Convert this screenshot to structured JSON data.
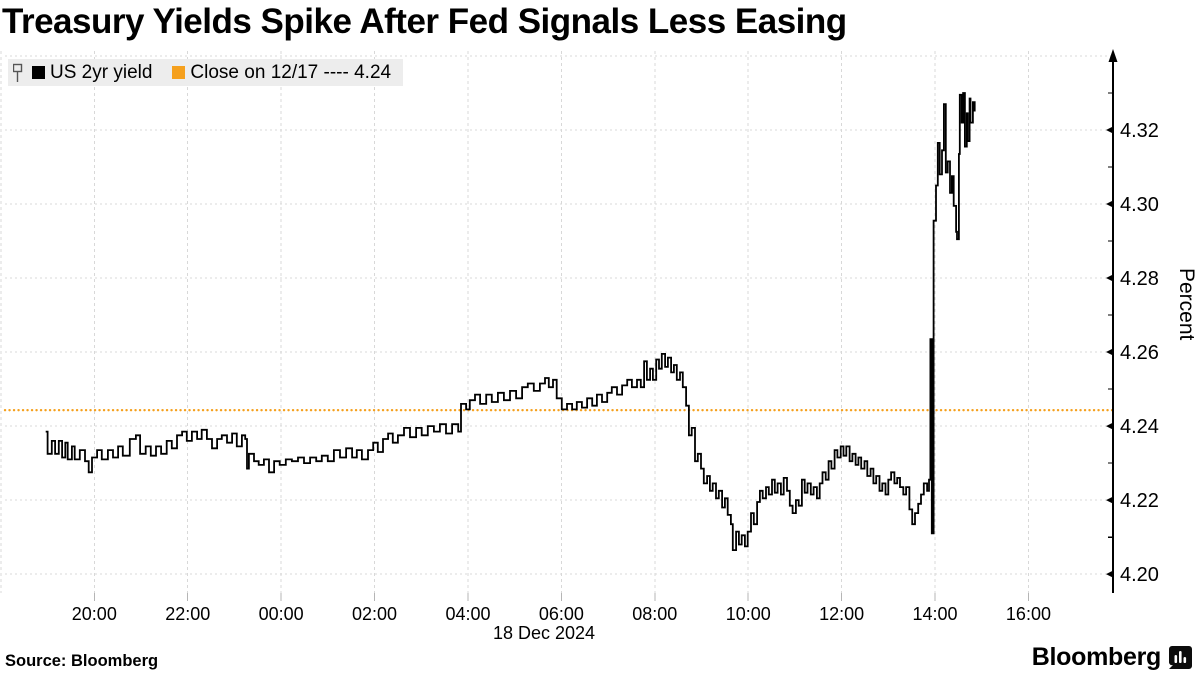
{
  "header": {
    "title": "Treasury Yields Spike After Fed Signals Less Easing"
  },
  "legend": {
    "flag_icon": "flag-marker",
    "series1": {
      "label": "US 2yr yield",
      "color": "#000000"
    },
    "series2": {
      "label": "Close on 12/17 ---- 4.24",
      "color": "#f5a01d"
    }
  },
  "footer": {
    "source": "Source: Bloomberg",
    "brand": "Bloomberg",
    "brand_icon": "bloomberg-terminal-icon"
  },
  "colors": {
    "line": "#000000",
    "close_line": "#f5a01d",
    "grid": "#d8d8d8",
    "legend_bg": "#ededed",
    "tick_stub": "#b5b5b5"
  },
  "chart_data": {
    "type": "line",
    "title": "Treasury Yields Spike After Fed Signals Less Easing",
    "xlabel": "18 Dec 2024",
    "ylabel": "Percent",
    "x_unit": "hours since 18:00 (17 Dec), labels are local clock time",
    "xlim": [
      0.088,
      23.81
    ],
    "ylim": [
      4.1949,
      4.3408
    ],
    "grid": true,
    "legend_position": "top-left",
    "x_ticks": [
      {
        "t": 2,
        "label": "20:00"
      },
      {
        "t": 4,
        "label": "22:00"
      },
      {
        "t": 6,
        "label": "00:00"
      },
      {
        "t": 8,
        "label": "02:00"
      },
      {
        "t": 10,
        "label": "04:00"
      },
      {
        "t": 12,
        "label": "06:00"
      },
      {
        "t": 14,
        "label": "08:00"
      },
      {
        "t": 16,
        "label": "10:00"
      },
      {
        "t": 18,
        "label": "12:00"
      },
      {
        "t": 20,
        "label": "14:00"
      },
      {
        "t": 22,
        "label": "16:00"
      }
    ],
    "x_gridlines": [
      0,
      2,
      4,
      6,
      8,
      10,
      12,
      14,
      16,
      18,
      20,
      22
    ],
    "y_ticks": [
      4.2,
      4.22,
      4.24,
      4.26,
      4.28,
      4.3,
      4.32
    ],
    "y_minor_ticks": [
      4.21,
      4.23,
      4.25,
      4.27,
      4.29,
      4.31,
      4.33
    ],
    "h_gridlines": [
      4.2,
      4.22,
      4.24,
      4.26,
      4.28,
      4.3,
      4.32,
      4.34
    ],
    "close_line": {
      "label": "Close on 12/17",
      "value": 4.2443
    },
    "series": [
      {
        "name": "US 2yr yield",
        "step": true,
        "points": [
          [
            0.96,
            4.2385
          ],
          [
            1.0,
            4.2325
          ],
          [
            1.09,
            4.236
          ],
          [
            1.16,
            4.2325
          ],
          [
            1.24,
            4.236
          ],
          [
            1.31,
            4.2315
          ],
          [
            1.38,
            4.2355
          ],
          [
            1.43,
            4.231
          ],
          [
            1.52,
            4.2345
          ],
          [
            1.58,
            4.231
          ],
          [
            1.69,
            4.2335
          ],
          [
            1.8,
            4.2305
          ],
          [
            1.88,
            4.2275
          ],
          [
            1.95,
            4.2315
          ],
          [
            2.06,
            4.2335
          ],
          [
            2.16,
            4.231
          ],
          [
            2.29,
            4.2335
          ],
          [
            2.4,
            4.2315
          ],
          [
            2.51,
            4.2345
          ],
          [
            2.61,
            4.232
          ],
          [
            2.76,
            4.2365
          ],
          [
            2.89,
            4.2375
          ],
          [
            2.98,
            4.2325
          ],
          [
            3.1,
            4.2345
          ],
          [
            3.21,
            4.232
          ],
          [
            3.32,
            4.2345
          ],
          [
            3.43,
            4.2325
          ],
          [
            3.55,
            4.236
          ],
          [
            3.66,
            4.234
          ],
          [
            3.77,
            4.2375
          ],
          [
            3.88,
            4.2385
          ],
          [
            3.98,
            4.236
          ],
          [
            4.09,
            4.2385
          ],
          [
            4.2,
            4.2365
          ],
          [
            4.3,
            4.239
          ],
          [
            4.41,
            4.2365
          ],
          [
            4.52,
            4.234
          ],
          [
            4.63,
            4.2365
          ],
          [
            4.73,
            4.2375
          ],
          [
            4.84,
            4.2355
          ],
          [
            4.95,
            4.238
          ],
          [
            5.05,
            4.2345
          ],
          [
            5.16,
            4.2375
          ],
          [
            5.23,
            4.2365
          ],
          [
            5.27,
            4.2285
          ],
          [
            5.31,
            4.2325
          ],
          [
            5.42,
            4.2305
          ],
          [
            5.52,
            4.2295
          ],
          [
            5.63,
            4.231
          ],
          [
            5.74,
            4.2275
          ],
          [
            5.85,
            4.2305
          ],
          [
            5.97,
            4.2295
          ],
          [
            6.1,
            4.231
          ],
          [
            6.23,
            4.2305
          ],
          [
            6.36,
            4.2315
          ],
          [
            6.49,
            4.23
          ],
          [
            6.62,
            4.2315
          ],
          [
            6.75,
            4.2305
          ],
          [
            6.87,
            4.232
          ],
          [
            7.0,
            4.2305
          ],
          [
            7.13,
            4.2335
          ],
          [
            7.26,
            4.2315
          ],
          [
            7.39,
            4.234
          ],
          [
            7.52,
            4.2315
          ],
          [
            7.62,
            4.2335
          ],
          [
            7.73,
            4.231
          ],
          [
            7.86,
            4.2335
          ],
          [
            7.97,
            4.2355
          ],
          [
            8.07,
            4.233
          ],
          [
            8.18,
            4.2365
          ],
          [
            8.29,
            4.238
          ],
          [
            8.39,
            4.2355
          ],
          [
            8.5,
            4.2375
          ],
          [
            8.63,
            4.2395
          ],
          [
            8.76,
            4.237
          ],
          [
            8.89,
            4.2395
          ],
          [
            9.01,
            4.2375
          ],
          [
            9.14,
            4.24
          ],
          [
            9.27,
            4.2385
          ],
          [
            9.4,
            4.2405
          ],
          [
            9.53,
            4.238
          ],
          [
            9.66,
            4.2405
          ],
          [
            9.79,
            4.2385
          ],
          [
            9.85,
            4.246
          ],
          [
            9.96,
            4.2445
          ],
          [
            10.04,
            4.247
          ],
          [
            10.15,
            4.2485
          ],
          [
            10.26,
            4.246
          ],
          [
            10.39,
            4.2485
          ],
          [
            10.51,
            4.2465
          ],
          [
            10.64,
            4.249
          ],
          [
            10.77,
            4.247
          ],
          [
            10.9,
            4.2495
          ],
          [
            11.03,
            4.2475
          ],
          [
            11.16,
            4.2505
          ],
          [
            11.28,
            4.2515
          ],
          [
            11.41,
            4.2495
          ],
          [
            11.54,
            4.2515
          ],
          [
            11.65,
            4.253
          ],
          [
            11.73,
            4.2505
          ],
          [
            11.82,
            4.2525
          ],
          [
            11.9,
            4.2475
          ],
          [
            12.01,
            4.2445
          ],
          [
            12.12,
            4.246
          ],
          [
            12.23,
            4.2445
          ],
          [
            12.33,
            4.2465
          ],
          [
            12.44,
            4.245
          ],
          [
            12.55,
            4.2475
          ],
          [
            12.66,
            4.2455
          ],
          [
            12.76,
            4.2485
          ],
          [
            12.87,
            4.2465
          ],
          [
            12.98,
            4.249
          ],
          [
            13.08,
            4.2505
          ],
          [
            13.19,
            4.2485
          ],
          [
            13.3,
            4.251
          ],
          [
            13.41,
            4.2525
          ],
          [
            13.51,
            4.2505
          ],
          [
            13.62,
            4.2525
          ],
          [
            13.7,
            4.2505
          ],
          [
            13.77,
            4.2575
          ],
          [
            13.83,
            4.2525
          ],
          [
            13.9,
            4.2555
          ],
          [
            13.96,
            4.2525
          ],
          [
            14.03,
            4.258
          ],
          [
            14.09,
            4.2555
          ],
          [
            14.15,
            4.2595
          ],
          [
            14.22,
            4.256
          ],
          [
            14.28,
            4.2585
          ],
          [
            14.35,
            4.2545
          ],
          [
            14.41,
            4.2565
          ],
          [
            14.47,
            4.2525
          ],
          [
            14.54,
            4.2545
          ],
          [
            14.6,
            4.2505
          ],
          [
            14.67,
            4.2455
          ],
          [
            14.73,
            4.2375
          ],
          [
            14.79,
            4.2395
          ],
          [
            14.86,
            4.2305
          ],
          [
            14.92,
            4.2325
          ],
          [
            14.99,
            4.2285
          ],
          [
            15.05,
            4.2245
          ],
          [
            15.12,
            4.2265
          ],
          [
            15.18,
            4.2225
          ],
          [
            15.24,
            4.2245
          ],
          [
            15.31,
            4.2205
          ],
          [
            15.37,
            4.2225
          ],
          [
            15.44,
            4.218
          ],
          [
            15.5,
            4.2205
          ],
          [
            15.56,
            4.216
          ],
          [
            15.63,
            4.2135
          ],
          [
            15.67,
            4.2065
          ],
          [
            15.74,
            4.2115
          ],
          [
            15.8,
            4.208
          ],
          [
            15.86,
            4.2105
          ],
          [
            15.93,
            4.2075
          ],
          [
            15.99,
            4.2115
          ],
          [
            16.06,
            4.2165
          ],
          [
            16.12,
            4.2135
          ],
          [
            16.19,
            4.2195
          ],
          [
            16.25,
            4.2225
          ],
          [
            16.31,
            4.2205
          ],
          [
            16.38,
            4.2235
          ],
          [
            16.44,
            4.2215
          ],
          [
            16.51,
            4.2255
          ],
          [
            16.57,
            4.222
          ],
          [
            16.63,
            4.2245
          ],
          [
            16.7,
            4.2215
          ],
          [
            16.76,
            4.226
          ],
          [
            16.83,
            4.2225
          ],
          [
            16.89,
            4.2185
          ],
          [
            16.95,
            4.2165
          ],
          [
            17.02,
            4.22
          ],
          [
            17.08,
            4.2185
          ],
          [
            17.15,
            4.2255
          ],
          [
            17.21,
            4.222
          ],
          [
            17.27,
            4.2245
          ],
          [
            17.34,
            4.2215
          ],
          [
            17.4,
            4.2235
          ],
          [
            17.47,
            4.2205
          ],
          [
            17.53,
            4.2245
          ],
          [
            17.59,
            4.2275
          ],
          [
            17.66,
            4.2255
          ],
          [
            17.72,
            4.2305
          ],
          [
            17.78,
            4.2285
          ],
          [
            17.85,
            4.2335
          ],
          [
            17.91,
            4.2315
          ],
          [
            17.98,
            4.2345
          ],
          [
            18.04,
            4.232
          ],
          [
            18.1,
            4.2345
          ],
          [
            18.17,
            4.2305
          ],
          [
            18.23,
            4.2325
          ],
          [
            18.3,
            4.2295
          ],
          [
            18.36,
            4.2315
          ],
          [
            18.42,
            4.2285
          ],
          [
            18.49,
            4.2305
          ],
          [
            18.55,
            4.2265
          ],
          [
            18.62,
            4.2285
          ],
          [
            18.68,
            4.2245
          ],
          [
            18.74,
            4.2265
          ],
          [
            18.81,
            4.2225
          ],
          [
            18.87,
            4.2245
          ],
          [
            18.94,
            4.2215
          ],
          [
            19.0,
            4.2255
          ],
          [
            19.06,
            4.2275
          ],
          [
            19.13,
            4.2245
          ],
          [
            19.19,
            4.226
          ],
          [
            19.25,
            4.2235
          ],
          [
            19.32,
            4.2215
          ],
          [
            19.38,
            4.2235
          ],
          [
            19.45,
            4.2175
          ],
          [
            19.51,
            4.2135
          ],
          [
            19.57,
            4.2165
          ],
          [
            19.64,
            4.219
          ],
          [
            19.7,
            4.2215
          ],
          [
            19.76,
            4.2245
          ],
          [
            19.83,
            4.2225
          ],
          [
            19.87,
            4.2255
          ],
          [
            19.9,
            4.2635
          ],
          [
            19.93,
            4.211
          ],
          [
            19.97,
            4.2955
          ],
          [
            20.02,
            4.305
          ],
          [
            20.06,
            4.3165
          ],
          [
            20.1,
            4.308
          ],
          [
            20.15,
            4.3145
          ],
          [
            20.19,
            4.327
          ],
          [
            20.23,
            4.3085
          ],
          [
            20.27,
            4.3115
          ],
          [
            20.32,
            4.303
          ],
          [
            20.36,
            4.3075
          ],
          [
            20.4,
            4.2995
          ],
          [
            20.45,
            4.2925
          ],
          [
            20.47,
            4.2905
          ],
          [
            20.51,
            4.3135
          ],
          [
            20.53,
            4.3295
          ],
          [
            20.57,
            4.322
          ],
          [
            20.6,
            4.33
          ],
          [
            20.64,
            4.3155
          ],
          [
            20.68,
            4.3245
          ],
          [
            20.7,
            4.317
          ],
          [
            20.74,
            4.3285
          ],
          [
            20.76,
            4.322
          ],
          [
            20.81,
            4.3275
          ],
          [
            20.85,
            4.325
          ]
        ]
      }
    ]
  }
}
